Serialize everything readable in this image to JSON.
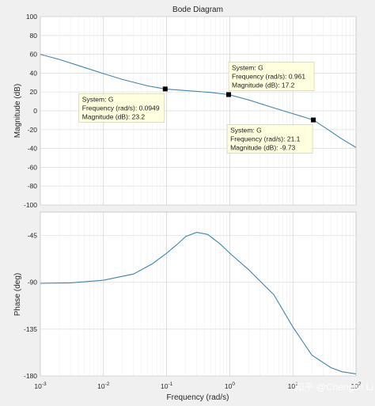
{
  "title": "Bode Diagram",
  "xlabel": "Frequency  (rad/s)",
  "watermark": "知乎 @Chenglin Li",
  "x_tick_labels": [
    {
      "base": "10",
      "exp": "-3"
    },
    {
      "base": "10",
      "exp": "-2"
    },
    {
      "base": "10",
      "exp": "-1"
    },
    {
      "base": "10",
      "exp": "0"
    },
    {
      "base": "10",
      "exp": "1"
    },
    {
      "base": "10",
      "exp": "2"
    }
  ],
  "colors": {
    "line": "#3f84b0",
    "marker": "#000000",
    "tip_bg": "#ffffe0",
    "grid": "#dcdcdc",
    "axes_bg": "#ffffff"
  },
  "chart_data": [
    {
      "type": "line",
      "panel": "magnitude",
      "ylabel": "Magnitude (dB)",
      "xscale": "log",
      "xlim": [
        0.001,
        100
      ],
      "ylim": [
        -100,
        100
      ],
      "yticks": [
        -100,
        -80,
        -60,
        -40,
        -20,
        0,
        20,
        40,
        60,
        80,
        100
      ],
      "grid": true,
      "series": [
        {
          "name": "G",
          "x": [
            0.001,
            0.002,
            0.005,
            0.01,
            0.02,
            0.05,
            0.0949,
            0.2,
            0.5,
            0.961,
            2,
            5,
            10,
            21.1,
            40,
            60,
            100
          ],
          "values": [
            60,
            54.5,
            46,
            39.5,
            33.3,
            26.5,
            23.2,
            21.5,
            19.5,
            17.2,
            11.5,
            3,
            -3,
            -9.73,
            -22,
            -30,
            -39
          ]
        }
      ],
      "datatips": [
        {
          "x": 0.0949,
          "y": 23.2,
          "system": "System: G",
          "freq": "Frequency (rad/s): 0.0949",
          "mag": "Magnitude (dB): 23.2",
          "placement": "below-left"
        },
        {
          "x": 0.961,
          "y": 17.2,
          "system": "System: G",
          "freq": "Frequency (rad/s): 0.961",
          "mag": "Magnitude (dB): 17.2",
          "placement": "above"
        },
        {
          "x": 21.1,
          "y": -9.73,
          "system": "System: G",
          "freq": "Frequency (rad/s): 21.1",
          "mag": "Magnitude (dB): -9.73",
          "placement": "below-left"
        }
      ]
    },
    {
      "type": "line",
      "panel": "phase",
      "ylabel": "Phase (deg)",
      "xscale": "log",
      "xlim": [
        0.001,
        100
      ],
      "ylim": [
        -180,
        -22.5
      ],
      "yticks": [
        -180,
        -135,
        -90,
        -45
      ],
      "grid": true,
      "series": [
        {
          "name": "G",
          "x": [
            0.001,
            0.003,
            0.01,
            0.03,
            0.06,
            0.1,
            0.15,
            0.2,
            0.3,
            0.45,
            0.7,
            1,
            2,
            5,
            10,
            20,
            40,
            60,
            100
          ],
          "values": [
            -91,
            -90.5,
            -88,
            -82,
            -72,
            -62,
            -53,
            -46,
            -42,
            -44,
            -53,
            -62,
            -78,
            -102,
            -133,
            -160,
            -172,
            -176,
            -178
          ]
        }
      ]
    }
  ]
}
